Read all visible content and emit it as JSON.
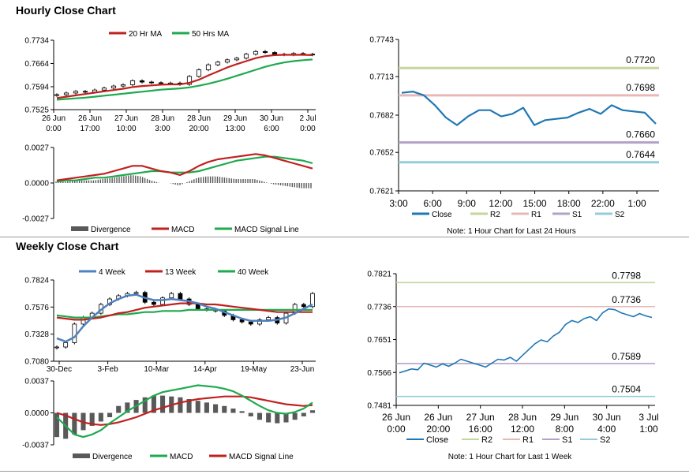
{
  "sections": {
    "hourly_title": "Hourly Close Chart",
    "weekly_title": "Weekly Close Chart"
  },
  "colors": {
    "ma_short": "#c0211f",
    "ma_long": "#1eaa4e",
    "ma4": "#4f81bd",
    "close_line": "#1f77b4",
    "r2": "#c3d69b",
    "r1": "#e6b9b8",
    "s1": "#b3a2c7",
    "s2": "#93cddd",
    "divergence": "#595959"
  },
  "chart_data": [
    {
      "id": "hourly_price",
      "type": "candlestick",
      "legend": [
        "20 Hr MA",
        "50 Hrs MA"
      ],
      "yticks": [
        "0.7734",
        "0.7664",
        "0.7594",
        "0.7525"
      ],
      "ylim": [
        0.7525,
        0.7734
      ],
      "xticks": [
        [
          "26 Jun",
          "0:00"
        ],
        [
          "26 Jun",
          "17:00"
        ],
        [
          "27 Jun",
          "10:00"
        ],
        [
          "28 Jun",
          "3:00"
        ],
        [
          "28 Jun",
          "20:00"
        ],
        [
          "29 Jun",
          "13:00"
        ],
        [
          "30 Jun",
          "6:00"
        ],
        [
          "2 Jul",
          "0:00"
        ]
      ],
      "close": [
        0.757,
        0.7575,
        0.758,
        0.7578,
        0.7584,
        0.759,
        0.7596,
        0.76,
        0.7612,
        0.7608,
        0.7606,
        0.7604,
        0.7605,
        0.7601,
        0.7625,
        0.7645,
        0.766,
        0.7668,
        0.7675,
        0.768,
        0.7692,
        0.77,
        0.7697,
        0.7692,
        0.769,
        0.7694,
        0.7692,
        0.769
      ],
      "ma20": [
        0.756,
        0.7564,
        0.7568,
        0.7572,
        0.7576,
        0.758,
        0.7584,
        0.7588,
        0.7593,
        0.7596,
        0.7598,
        0.76,
        0.7601,
        0.7601,
        0.7606,
        0.7615,
        0.7628,
        0.764,
        0.7652,
        0.7662,
        0.7671,
        0.768,
        0.7686,
        0.7689,
        0.769,
        0.769,
        0.769,
        0.7689
      ],
      "ma50": [
        0.7555,
        0.7557,
        0.7559,
        0.7561,
        0.7564,
        0.7567,
        0.757,
        0.7573,
        0.7576,
        0.7579,
        0.7582,
        0.7585,
        0.7587,
        0.7589,
        0.7592,
        0.7597,
        0.7603,
        0.761,
        0.7618,
        0.7627,
        0.7636,
        0.7645,
        0.7654,
        0.7661,
        0.7667,
        0.7671,
        0.7674,
        0.7676
      ]
    },
    {
      "id": "hourly_macd",
      "type": "macd",
      "legend": [
        "Divergence",
        "MACD",
        "MACD Signal Line"
      ],
      "yticks": [
        "0.0027",
        "0.0000",
        "-0.0027"
      ],
      "ylim": [
        -0.0027,
        0.0027
      ],
      "macd": [
        0.0002,
        0.0003,
        0.0004,
        0.0005,
        0.0006,
        0.0007,
        0.0009,
        0.0011,
        0.0013,
        0.0013,
        0.0011,
        0.0009,
        0.0008,
        0.0006,
        0.0009,
        0.0013,
        0.0016,
        0.0018,
        0.0019,
        0.002,
        0.0021,
        0.0022,
        0.0021,
        0.0019,
        0.0017,
        0.0015,
        0.0013,
        0.0011
      ],
      "signal": [
        0.0001,
        0.0002,
        0.0002,
        0.0003,
        0.0004,
        0.0004,
        0.0005,
        0.0006,
        0.0007,
        0.0008,
        0.0009,
        0.0009,
        0.0008,
        0.0008,
        0.0008,
        0.0009,
        0.0011,
        0.0013,
        0.0015,
        0.0017,
        0.0018,
        0.0019,
        0.002,
        0.002,
        0.0019,
        0.0018,
        0.0017,
        0.0015
      ]
    },
    {
      "id": "hourly_levels",
      "type": "line",
      "legend": [
        "Close",
        "R2",
        "R1",
        "S1",
        "S2"
      ],
      "yticks": [
        "0.7743",
        "0.7713",
        "0.7682",
        "0.7652",
        "0.7621"
      ],
      "ylim": [
        0.7621,
        0.7743
      ],
      "xticks": [
        "3:00",
        "6:00",
        "9:00",
        "12:00",
        "15:00",
        "18:00",
        "22:00",
        "1:00"
      ],
      "levels": [
        {
          "name": "R2",
          "value": 0.772,
          "label": "0.7720"
        },
        {
          "name": "R1",
          "value": 0.7698,
          "label": "0.7698"
        },
        {
          "name": "S1",
          "value": 0.766,
          "label": "0.7660"
        },
        {
          "name": "S2",
          "value": 0.7644,
          "label": "0.7644"
        }
      ],
      "close": [
        0.77,
        0.7701,
        0.7698,
        0.769,
        0.768,
        0.7674,
        0.7681,
        0.7686,
        0.7686,
        0.7681,
        0.7683,
        0.7688,
        0.7674,
        0.7678,
        0.7679,
        0.768,
        0.7684,
        0.7687,
        0.7683,
        0.769,
        0.7686,
        0.7685,
        0.7684,
        0.7675
      ],
      "note": "Note: 1 Hour Chart for Last 24 Hours"
    },
    {
      "id": "weekly_price",
      "type": "candlestick",
      "legend": [
        "4 Week",
        "13 Week",
        "40 Week"
      ],
      "yticks": [
        "0.7824",
        "0.7576",
        "0.7328",
        "0.7080"
      ],
      "ylim": [
        0.708,
        0.7824
      ],
      "xticks": [
        "30-Dec",
        "3-Feb",
        "10-Mar",
        "14-Apr",
        "19-May",
        "23-Jun"
      ],
      "close": [
        0.721,
        0.725,
        0.742,
        0.748,
        0.752,
        0.76,
        0.765,
        0.768,
        0.77,
        0.771,
        0.762,
        0.76,
        0.766,
        0.77,
        0.765,
        0.76,
        0.756,
        0.755,
        0.754,
        0.75,
        0.746,
        0.744,
        0.742,
        0.746,
        0.748,
        0.743,
        0.752,
        0.76,
        0.758,
        0.77
      ],
      "ma4": [
        0.729,
        0.726,
        0.73,
        0.74,
        0.748,
        0.755,
        0.761,
        0.765,
        0.768,
        0.769,
        0.766,
        0.764,
        0.764,
        0.765,
        0.764,
        0.763,
        0.761,
        0.758,
        0.756,
        0.753,
        0.75,
        0.747,
        0.745,
        0.745,
        0.745,
        0.746,
        0.748,
        0.752,
        0.756,
        0.76
      ],
      "ma13": [
        0.748,
        0.747,
        0.746,
        0.746,
        0.747,
        0.748,
        0.75,
        0.752,
        0.753,
        0.755,
        0.757,
        0.758,
        0.759,
        0.76,
        0.761,
        0.761,
        0.761,
        0.76,
        0.76,
        0.759,
        0.758,
        0.757,
        0.756,
        0.755,
        0.754,
        0.753,
        0.753,
        0.753,
        0.753,
        0.753
      ],
      "ma40": [
        0.75,
        0.749,
        0.748,
        0.748,
        0.748,
        0.749,
        0.75,
        0.751,
        0.751,
        0.752,
        0.753,
        0.753,
        0.754,
        0.754,
        0.754,
        0.755,
        0.755,
        0.755,
        0.755,
        0.755,
        0.755,
        0.755,
        0.755,
        0.755,
        0.755,
        0.755,
        0.755,
        0.755,
        0.755,
        0.755
      ]
    },
    {
      "id": "weekly_macd",
      "type": "macd",
      "legend": [
        "Divergence",
        "MACD",
        "MACD Signal Line"
      ],
      "yticks": [
        "0.0037",
        "0.0000",
        "-0.0037"
      ],
      "ylim": [
        -0.0037,
        0.0037
      ],
      "macd": [
        -0.0005,
        -0.0015,
        -0.0025,
        -0.0028,
        -0.0025,
        -0.002,
        -0.0012,
        -0.0005,
        0.0002,
        0.0008,
        0.0014,
        0.002,
        0.0024,
        0.0026,
        0.0028,
        0.003,
        0.0032,
        0.0031,
        0.003,
        0.0028,
        0.0025,
        0.002,
        0.0014,
        0.0008,
        0.0003,
        0.0,
        -0.0001,
        0.0001,
        0.0005,
        0.0012
      ],
      "signal": [
        0.0,
        -0.0003,
        -0.0007,
        -0.0011,
        -0.0013,
        -0.0014,
        -0.0013,
        -0.0011,
        -0.0008,
        -0.0005,
        -0.0001,
        0.0003,
        0.0006,
        0.0009,
        0.0012,
        0.0014,
        0.0016,
        0.0017,
        0.0018,
        0.0019,
        0.0019,
        0.0019,
        0.0018,
        0.0016,
        0.0014,
        0.0012,
        0.001,
        0.0009,
        0.0008,
        0.0009
      ],
      "divergence": [
        -0.0028,
        -0.003,
        -0.0025,
        -0.002,
        -0.0015,
        -0.001,
        -0.0005,
        0.0008,
        0.0012,
        0.0015,
        0.0018,
        0.002,
        0.002,
        0.0019,
        0.0018,
        0.0016,
        0.0014,
        0.0012,
        0.001,
        0.0008,
        0.0005,
        0.0002,
        -0.0004,
        -0.0008,
        -0.0011,
        -0.0012,
        -0.0011,
        -0.0008,
        -0.0004,
        0.0003
      ]
    },
    {
      "id": "weekly_levels",
      "type": "line",
      "legend": [
        "Close",
        "R2",
        "R1",
        "S1",
        "S2"
      ],
      "yticks": [
        "0.7821",
        "0.7736",
        "0.7651",
        "0.7566",
        "0.7481"
      ],
      "ylim": [
        0.7481,
        0.7821
      ],
      "xticks": [
        [
          "26 Jun",
          "0:00"
        ],
        [
          "26 Jun",
          "20:00"
        ],
        [
          "27 Jun",
          "16:00"
        ],
        [
          "28 Jun",
          "12:00"
        ],
        [
          "29 Jun",
          "8:00"
        ],
        [
          "30 Jun",
          "4:00"
        ],
        [
          "3 Jul",
          "1:00"
        ]
      ],
      "levels": [
        {
          "name": "R2",
          "value": 0.7798,
          "label": "0.7798"
        },
        {
          "name": "R1",
          "value": 0.7736,
          "label": "0.7736"
        },
        {
          "name": "S1",
          "value": 0.7589,
          "label": "0.7589"
        },
        {
          "name": "S2",
          "value": 0.7504,
          "label": "0.7504"
        }
      ],
      "close": [
        0.7565,
        0.757,
        0.7575,
        0.7573,
        0.759,
        0.7585,
        0.758,
        0.7588,
        0.7582,
        0.759,
        0.76,
        0.7595,
        0.759,
        0.7585,
        0.758,
        0.759,
        0.76,
        0.7598,
        0.7605,
        0.7595,
        0.761,
        0.7625,
        0.764,
        0.765,
        0.7645,
        0.766,
        0.767,
        0.769,
        0.77,
        0.7695,
        0.7705,
        0.771,
        0.77,
        0.772,
        0.773,
        0.7728,
        0.772,
        0.7715,
        0.771,
        0.7718,
        0.7712,
        0.7708
      ],
      "note": "Note: 1 Hour Chart for Last 1 Week"
    }
  ]
}
